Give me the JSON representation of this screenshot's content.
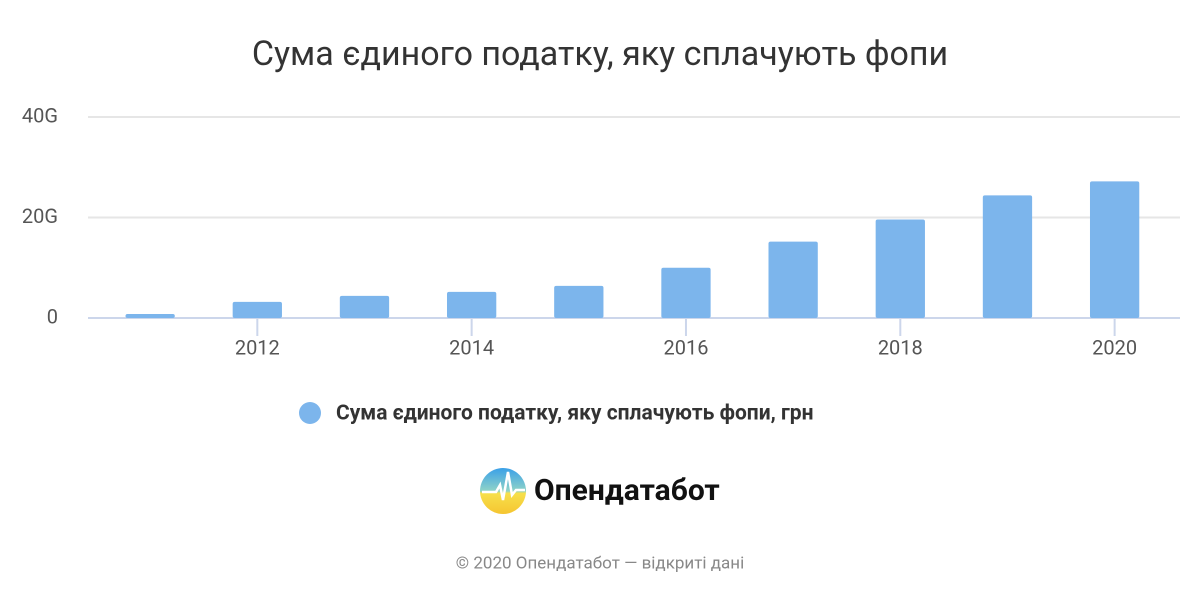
{
  "chart_data": {
    "type": "bar",
    "title": "Сума єдиного податку, яку сплачують фопи",
    "x": [
      2011,
      2012,
      2013,
      2014,
      2015,
      2016,
      2017,
      2018,
      2019,
      2020
    ],
    "series": [
      {
        "name": "Сума єдиного податку, яку сплачують фопи, грн",
        "color": "#7cb5ec",
        "values": [
          0.8,
          3.2,
          4.4,
          5.2,
          6.4,
          10,
          15.2,
          19.6,
          24.4,
          27.2
        ]
      }
    ],
    "xlim": [
      2010.42,
      2020.61
    ],
    "xticks": [
      2012,
      2014,
      2016,
      2018,
      2020
    ],
    "ylim": [
      0,
      40
    ],
    "yticks": [
      0,
      {
        "value": 20,
        "label": "20G"
      },
      {
        "value": 40,
        "label": "40G"
      }
    ],
    "grid": true,
    "legend": "bottom"
  },
  "logo": "Опендатабот",
  "footer": "© 2020 Опендатабот — відкриті дані"
}
